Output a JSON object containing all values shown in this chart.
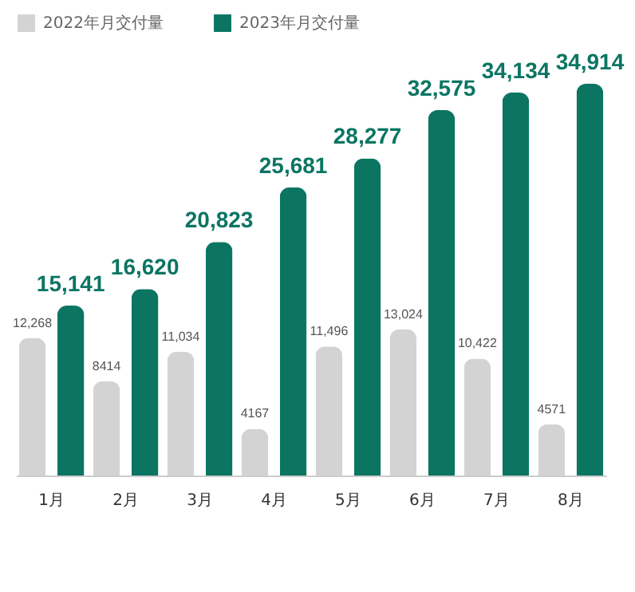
{
  "chart_data": {
    "type": "bar",
    "categories": [
      "1月",
      "2月",
      "3月",
      "4月",
      "5月",
      "6月",
      "7月",
      "8月"
    ],
    "series": [
      {
        "name": "2022年月交付量",
        "color": "#d3d3d3",
        "values": [
          12268,
          8414,
          11034,
          4167,
          11496,
          13024,
          10422,
          4571
        ],
        "value_labels": [
          "12,268",
          "8414",
          "11,034",
          "4167",
          "11,496",
          "13,024",
          "10,422",
          "4571"
        ]
      },
      {
        "name": "2023年月交付量",
        "color": "#0b7562",
        "values": [
          15141,
          16620,
          20823,
          25681,
          28277,
          32575,
          34134,
          34914
        ],
        "value_labels": [
          "15,141",
          "16,620",
          "20,823",
          "25,681",
          "28,277",
          "32,575",
          "34,134",
          "34,914"
        ]
      }
    ],
    "legend": "top left"
  }
}
